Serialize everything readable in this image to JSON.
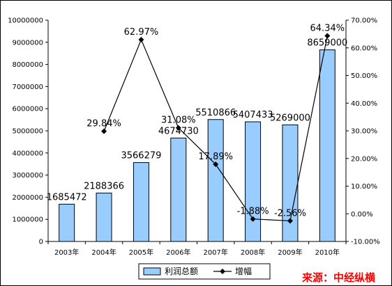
{
  "chart_data": {
    "type": "bar",
    "categories": [
      "2003年",
      "2004年",
      "2005年",
      "2006年",
      "2007年",
      "2008年",
      "2009年",
      "2010年"
    ],
    "series": [
      {
        "name": "利润总额",
        "type": "bar",
        "axis": "left",
        "values": [
          1685472,
          2188366,
          3566279,
          4674730,
          5510866,
          5407433,
          5269000,
          8659000
        ],
        "labels": [
          "1685472",
          "2188366",
          "3566279",
          "4674730",
          "5510866",
          "5407433",
          "5269000",
          "8659000"
        ]
      },
      {
        "name": "增幅",
        "type": "line",
        "axis": "right",
        "values": [
          null,
          29.84,
          62.97,
          31.08,
          17.89,
          -1.88,
          -2.56,
          64.34
        ],
        "labels": [
          "",
          "29.84%",
          "62.97%",
          "31.08%",
          "17.89%",
          "-1.88%",
          "-2.56%",
          "64.34%"
        ]
      }
    ],
    "left_axis": {
      "ylim": [
        0,
        10000000
      ],
      "ticks": [
        0,
        1000000,
        2000000,
        3000000,
        4000000,
        5000000,
        6000000,
        7000000,
        8000000,
        9000000,
        10000000
      ],
      "tick_labels": [
        "0",
        "1000000",
        "2000000",
        "3000000",
        "4000000",
        "5000000",
        "6000000",
        "7000000",
        "8000000",
        "9000000",
        "10000000"
      ]
    },
    "right_axis": {
      "ylim": [
        -10,
        70
      ],
      "ticks": [
        -10,
        0,
        10,
        20,
        30,
        40,
        50,
        60,
        70
      ],
      "tick_labels": [
        "-10.00%",
        "0.00%",
        "10.00%",
        "20.00%",
        "30.00%",
        "40.00%",
        "50.00%",
        "60.00%",
        "70.00%"
      ]
    },
    "grid": false,
    "legend_position": "bottom",
    "colors": {
      "bar_fill": "#99ccff",
      "bar_stroke": "#000000",
      "line": "#000000",
      "source": "#ff0000"
    },
    "annotation": "来源：中经纵横"
  }
}
